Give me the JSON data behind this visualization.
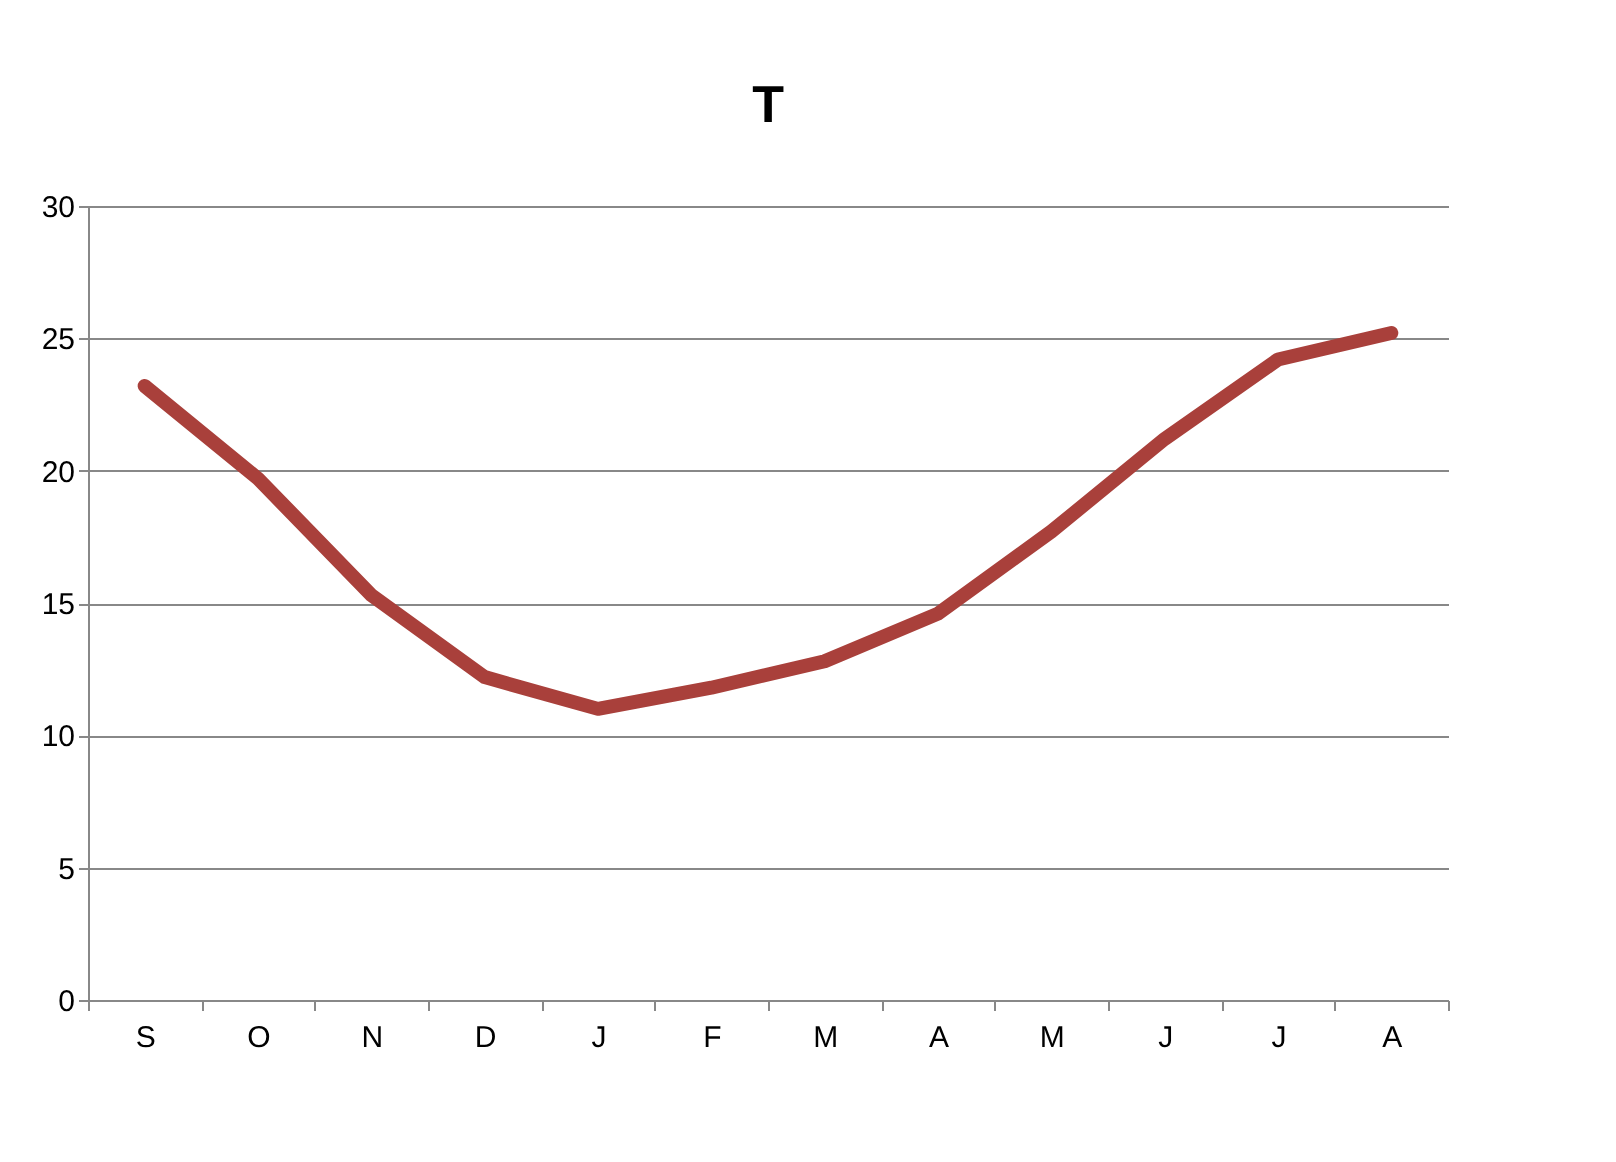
{
  "chart_data": {
    "type": "line",
    "title": "T",
    "categories": [
      "S",
      "O",
      "N",
      "D",
      "J",
      "F",
      "M",
      "A",
      "M",
      "J",
      "J",
      "A"
    ],
    "series": [
      {
        "color": "#a9403b",
        "values": [
          23.2,
          19.7,
          15.3,
          12.2,
          11.0,
          11.8,
          12.8,
          14.6,
          17.7,
          21.2,
          24.2,
          25.2
        ]
      }
    ],
    "ylim": [
      0,
      30
    ],
    "yticks": [
      0,
      5,
      10,
      15,
      20,
      25,
      30
    ],
    "grid": "y",
    "marker": "none",
    "line_style": "solid"
  }
}
